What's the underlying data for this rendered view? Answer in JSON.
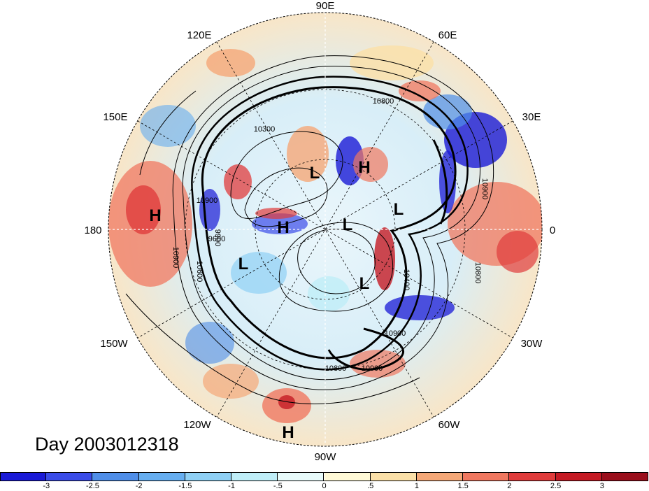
{
  "map": {
    "title": "Day 2003012318",
    "longitude_labels": [
      "90E",
      "60E",
      "30E",
      "0",
      "30W",
      "60W",
      "90W",
      "120W",
      "150W",
      "180",
      "150E",
      "120E"
    ],
    "pressure_centers": [
      "H",
      "L",
      "H",
      "H",
      "H",
      "L",
      "L",
      "L",
      "L",
      "L",
      "H"
    ],
    "contour_labels": [
      "10800",
      "10300",
      "9900",
      "10900",
      "10600",
      "9600",
      "10400",
      "10800",
      "10900",
      "10800",
      "10900",
      "10900",
      "10900"
    ]
  },
  "colorbar": {
    "colors": [
      "#1a1ad6",
      "#3a4ce8",
      "#4f8ee8",
      "#66aef0",
      "#8fd0f5",
      "#bfeef8",
      "#e8fbfb",
      "#fff9d6",
      "#fbe0a8",
      "#f5a878",
      "#f07860",
      "#e03c3c",
      "#c41a24",
      "#9a0f1c"
    ],
    "tick_labels": [
      "-3",
      "-2.5",
      "-2",
      "-1.5",
      "-1",
      "-.5",
      "0",
      ".5",
      "1",
      "1.5",
      "2",
      "2.5",
      "3"
    ]
  }
}
